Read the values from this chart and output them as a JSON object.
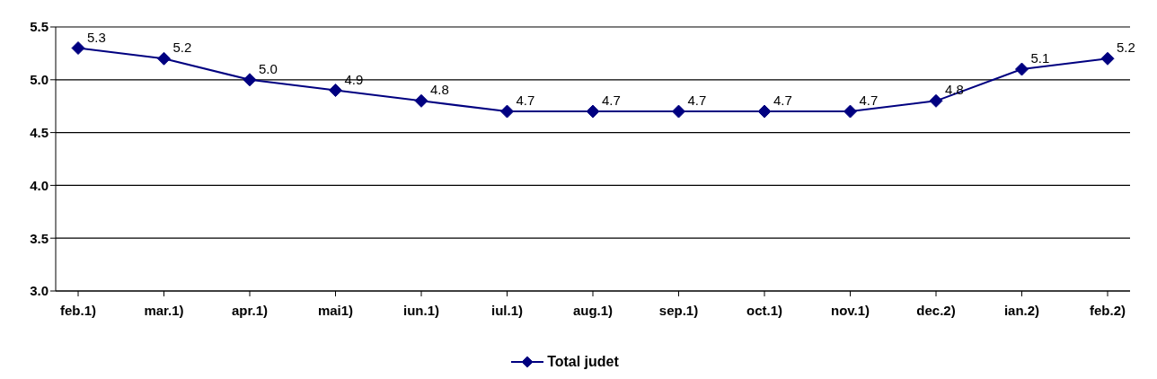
{
  "chart_data": {
    "type": "line",
    "categories": [
      "feb.1)",
      "mar.1)",
      "apr.1)",
      "mai1)",
      "iun.1)",
      "iul.1)",
      "aug.1)",
      "sep.1)",
      "oct.1)",
      "nov.1)",
      "dec.2)",
      "ian.2)",
      "feb.2)"
    ],
    "series": [
      {
        "name": "Total judet",
        "color": "#000080",
        "values": [
          5.3,
          5.2,
          5.0,
          4.9,
          4.8,
          4.7,
          4.7,
          4.7,
          4.7,
          4.7,
          4.8,
          5.1,
          5.2
        ],
        "value_labels": [
          "5.3",
          "5.2",
          "5.0",
          "4.9",
          "4.8",
          "4.7",
          "4.7",
          "4.7",
          "4.7",
          "4.7",
          "4.8",
          "5.1",
          "5.2"
        ]
      }
    ],
    "ylim": [
      3.0,
      5.5
    ],
    "yticks": [
      {
        "value": 3.0,
        "label": "3.0"
      },
      {
        "value": 3.5,
        "label": "3.5"
      },
      {
        "value": 4.0,
        "label": "4.0"
      },
      {
        "value": 4.5,
        "label": "4.5"
      },
      {
        "value": 5.0,
        "label": "5.0"
      },
      {
        "value": 5.5,
        "label": "5.5"
      }
    ],
    "grid": "y",
    "legend": "bottom",
    "marker": "diamond",
    "line_style": "solid"
  }
}
